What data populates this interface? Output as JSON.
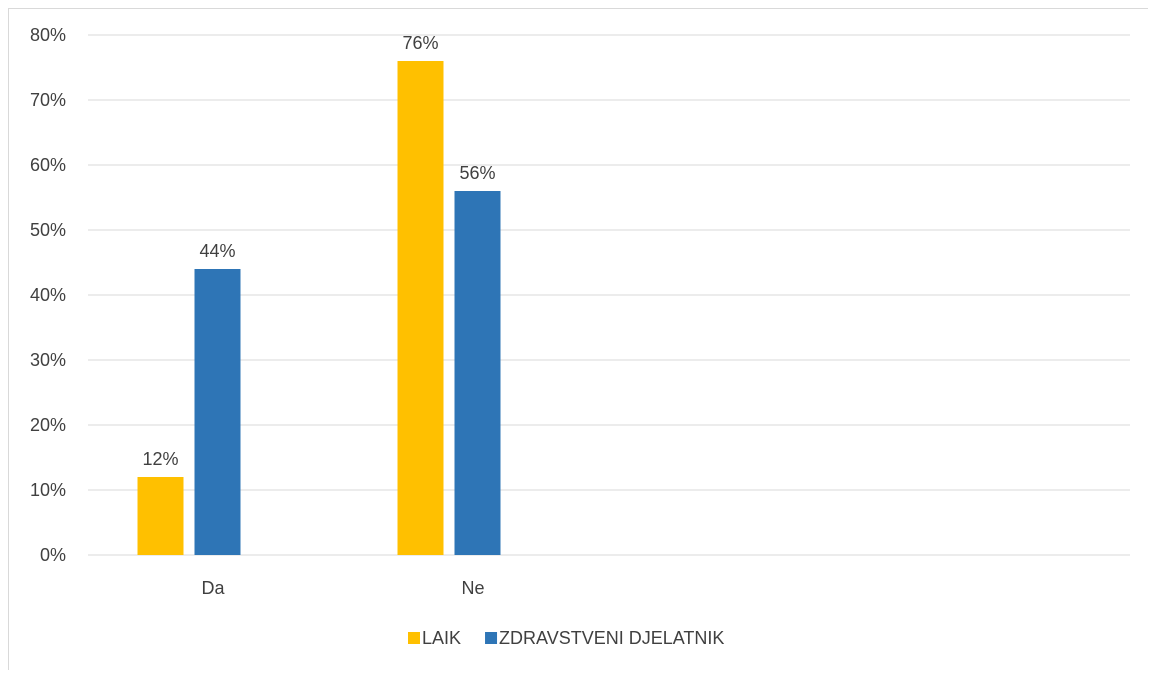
{
  "chart_data": {
    "type": "bar",
    "categories": [
      "Da",
      "Ne"
    ],
    "series": [
      {
        "name": "LAIK",
        "values": [
          12,
          76
        ],
        "color": "#ffc000"
      },
      {
        "name": "ZDRAVSTVENI DJELATNIK",
        "values": [
          44,
          56
        ],
        "color": "#2e75b6"
      }
    ],
    "value_labels": [
      [
        "12%",
        "76%"
      ],
      [
        "44%",
        "56%"
      ]
    ],
    "yticks": [
      "0%",
      "10%",
      "20%",
      "30%",
      "40%",
      "50%",
      "60%",
      "70%",
      "80%"
    ],
    "ylim": [
      0,
      80
    ],
    "grid": true,
    "legend_position": "bottom",
    "title": "",
    "xlabel": "",
    "ylabel": ""
  }
}
